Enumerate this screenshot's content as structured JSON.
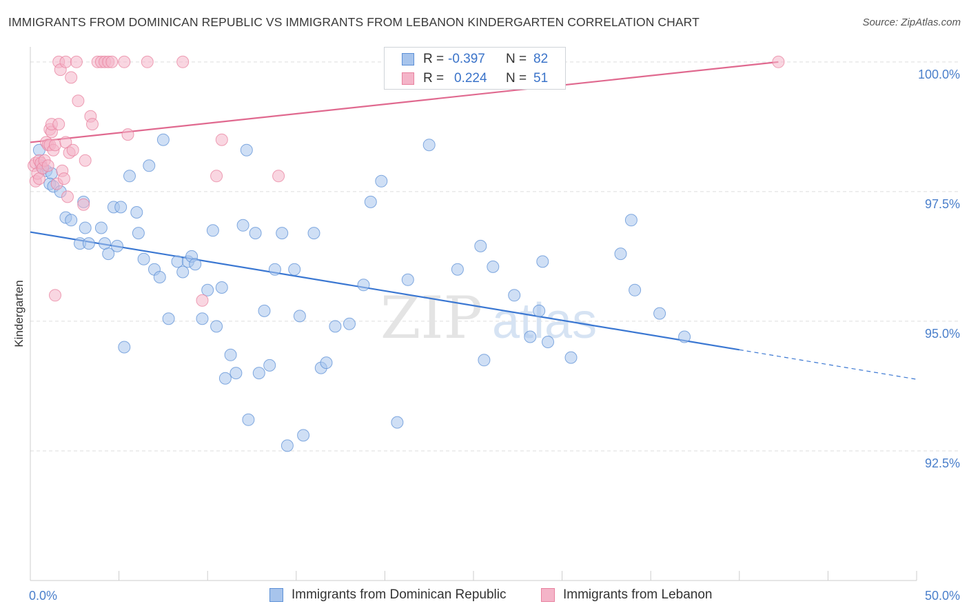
{
  "title": "IMMIGRANTS FROM DOMINICAN REPUBLIC VS IMMIGRANTS FROM LEBANON KINDERGARTEN CORRELATION CHART",
  "source": "Source: ZipAtlas.com",
  "watermark": {
    "zip": "ZIP",
    "atlas": "atlas"
  },
  "legend_top": {
    "rows": [
      {
        "r_label": "R =",
        "r_value": "-0.397",
        "n_label": "N =",
        "n_value": "82",
        "color": "#a7c4ec"
      },
      {
        "r_label": "R =",
        "r_value": "0.224",
        "n_label": "N =",
        "n_value": "51",
        "color": "#f4b4c8"
      }
    ]
  },
  "legend_bottom": [
    {
      "label": "Immigrants from Dominican Republic",
      "color": "#a7c4ec"
    },
    {
      "label": "Immigrants from Lebanon",
      "color": "#f4b4c8"
    }
  ],
  "chart_data": {
    "type": "scatter",
    "title": "IMMIGRANTS FROM DOMINICAN REPUBLIC VS IMMIGRANTS FROM LEBANON KINDERGARTEN CORRELATION CHART",
    "xlabel": "",
    "ylabel": "Kindergarten",
    "xlim": [
      0,
      50
    ],
    "ylim": [
      90.0,
      100.45
    ],
    "x_tick_labels": [
      "0.0%",
      "50.0%"
    ],
    "y_ticks": [
      92.5,
      95.0,
      97.5,
      100.0
    ],
    "y_tick_labels": [
      "92.5%",
      "95.0%",
      "97.5%",
      "100.0%"
    ],
    "grid": true,
    "legend_position": "top-center",
    "series": [
      {
        "name": "Immigrants from Dominican Republic",
        "color": "#a7c4ec",
        "stroke": "#5b8fd6",
        "line_color": "#3a77d2",
        "trend": {
          "x0": 0,
          "y0": 96.72,
          "x1": 40,
          "y1": 94.45,
          "dash_to_x": 50,
          "dash_to_y": 93.88
        },
        "points": [
          [
            0.5,
            98.3
          ],
          [
            0.6,
            98.0
          ],
          [
            0.7,
            97.95
          ],
          [
            0.9,
            97.9
          ],
          [
            1.2,
            97.85
          ],
          [
            1.1,
            97.65
          ],
          [
            1.3,
            97.6
          ],
          [
            1.7,
            97.5
          ],
          [
            2.0,
            97.0
          ],
          [
            2.3,
            96.95
          ],
          [
            2.8,
            96.5
          ],
          [
            3.0,
            97.3
          ],
          [
            3.1,
            96.8
          ],
          [
            3.3,
            96.5
          ],
          [
            4.0,
            96.8
          ],
          [
            4.2,
            96.5
          ],
          [
            4.4,
            96.3
          ],
          [
            4.7,
            97.2
          ],
          [
            4.9,
            96.45
          ],
          [
            5.1,
            97.2
          ],
          [
            5.3,
            94.5
          ],
          [
            5.6,
            97.8
          ],
          [
            6.0,
            97.1
          ],
          [
            6.1,
            96.7
          ],
          [
            6.4,
            96.2
          ],
          [
            6.7,
            98.0
          ],
          [
            7.0,
            96.0
          ],
          [
            7.3,
            95.85
          ],
          [
            7.5,
            98.5
          ],
          [
            7.8,
            95.05
          ],
          [
            8.3,
            96.15
          ],
          [
            8.6,
            95.95
          ],
          [
            8.9,
            96.15
          ],
          [
            9.1,
            96.25
          ],
          [
            9.3,
            96.1
          ],
          [
            9.7,
            95.05
          ],
          [
            10.0,
            95.6
          ],
          [
            10.3,
            96.75
          ],
          [
            10.5,
            94.9
          ],
          [
            10.8,
            95.65
          ],
          [
            11.0,
            93.9
          ],
          [
            11.3,
            94.35
          ],
          [
            11.6,
            94.0
          ],
          [
            12.0,
            96.85
          ],
          [
            12.2,
            98.3
          ],
          [
            12.3,
            93.1
          ],
          [
            12.7,
            96.7
          ],
          [
            12.9,
            94.0
          ],
          [
            13.2,
            95.2
          ],
          [
            13.5,
            94.15
          ],
          [
            13.8,
            96.0
          ],
          [
            14.2,
            96.7
          ],
          [
            14.5,
            92.6
          ],
          [
            14.9,
            96.0
          ],
          [
            15.2,
            95.1
          ],
          [
            15.4,
            92.8
          ],
          [
            16.0,
            96.7
          ],
          [
            16.4,
            94.1
          ],
          [
            16.7,
            94.2
          ],
          [
            17.2,
            94.9
          ],
          [
            18.0,
            94.95
          ],
          [
            18.8,
            95.7
          ],
          [
            19.2,
            97.3
          ],
          [
            19.8,
            97.7
          ],
          [
            20.7,
            93.05
          ],
          [
            21.3,
            95.8
          ],
          [
            22.5,
            98.4
          ],
          [
            24.1,
            96.0
          ],
          [
            25.4,
            96.45
          ],
          [
            25.6,
            94.25
          ],
          [
            26.1,
            96.05
          ],
          [
            27.3,
            95.5
          ],
          [
            28.2,
            94.7
          ],
          [
            28.7,
            95.2
          ],
          [
            28.9,
            96.15
          ],
          [
            29.2,
            94.6
          ],
          [
            30.5,
            94.3
          ],
          [
            33.3,
            96.3
          ],
          [
            33.9,
            96.95
          ],
          [
            34.1,
            95.6
          ],
          [
            35.5,
            95.15
          ],
          [
            36.9,
            94.7
          ]
        ]
      },
      {
        "name": "Immigrants from Lebanon",
        "color": "#f4b4c8",
        "stroke": "#e8809e",
        "line_color": "#e0698f",
        "trend": {
          "x0": 0,
          "y0": 98.45,
          "x1": 42.2,
          "y1": 100.0
        },
        "points": [
          [
            0.2,
            98.0
          ],
          [
            0.3,
            97.7
          ],
          [
            0.3,
            98.05
          ],
          [
            0.4,
            97.85
          ],
          [
            0.5,
            98.1
          ],
          [
            0.5,
            97.75
          ],
          [
            0.6,
            98.05
          ],
          [
            0.7,
            97.95
          ],
          [
            0.8,
            98.1
          ],
          [
            0.9,
            98.45
          ],
          [
            1.0,
            98.4
          ],
          [
            1.0,
            98.0
          ],
          [
            1.1,
            98.7
          ],
          [
            1.1,
            98.4
          ],
          [
            1.2,
            98.65
          ],
          [
            1.2,
            98.8
          ],
          [
            1.3,
            98.3
          ],
          [
            1.4,
            98.4
          ],
          [
            1.4,
            95.5
          ],
          [
            1.5,
            97.65
          ],
          [
            1.6,
            98.8
          ],
          [
            1.6,
            100.0
          ],
          [
            1.7,
            99.85
          ],
          [
            1.8,
            97.9
          ],
          [
            1.9,
            97.75
          ],
          [
            2.0,
            100.0
          ],
          [
            2.0,
            98.45
          ],
          [
            2.1,
            97.4
          ],
          [
            2.2,
            98.25
          ],
          [
            2.3,
            99.7
          ],
          [
            2.4,
            98.3
          ],
          [
            2.6,
            100.0
          ],
          [
            2.7,
            99.25
          ],
          [
            3.0,
            97.25
          ],
          [
            3.1,
            98.1
          ],
          [
            3.4,
            98.95
          ],
          [
            3.5,
            98.8
          ],
          [
            3.8,
            100.0
          ],
          [
            4.0,
            100.0
          ],
          [
            4.2,
            100.0
          ],
          [
            4.4,
            100.0
          ],
          [
            4.6,
            100.0
          ],
          [
            5.3,
            100.0
          ],
          [
            5.5,
            98.6
          ],
          [
            6.6,
            100.0
          ],
          [
            8.6,
            100.0
          ],
          [
            9.7,
            95.4
          ],
          [
            10.5,
            97.8
          ],
          [
            10.8,
            98.5
          ],
          [
            14.0,
            97.8
          ],
          [
            42.2,
            100.0
          ]
        ]
      }
    ]
  }
}
